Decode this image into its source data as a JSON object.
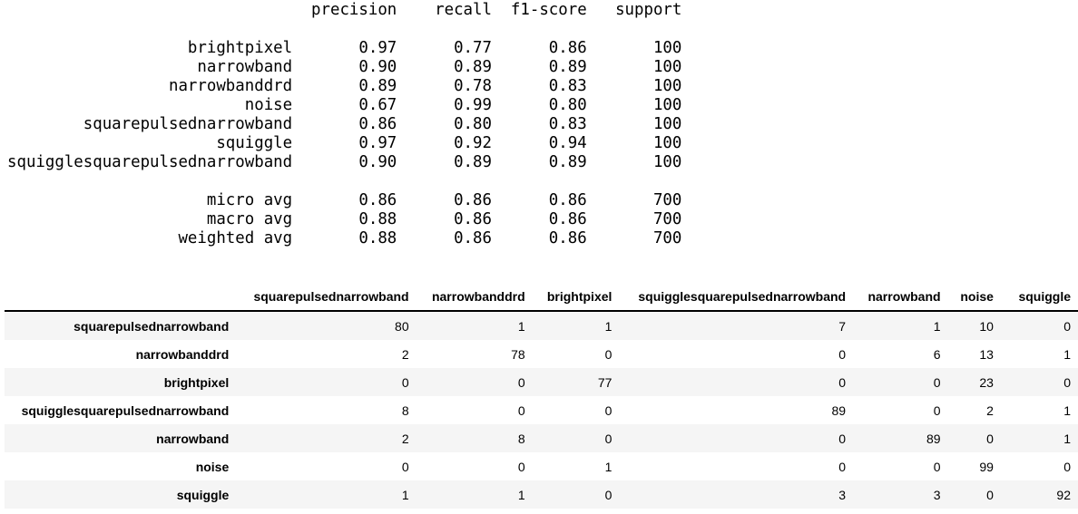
{
  "classification_report": {
    "headers": [
      "precision",
      "recall",
      "f1-score",
      "support"
    ],
    "label_field_width": 30,
    "value_field_width": 9,
    "rows": [
      {
        "label": "brightpixel",
        "precision": "0.97",
        "recall": "0.77",
        "f1_score": "0.86",
        "support": "100"
      },
      {
        "label": "narrowband",
        "precision": "0.90",
        "recall": "0.89",
        "f1_score": "0.89",
        "support": "100"
      },
      {
        "label": "narrowbanddrd",
        "precision": "0.89",
        "recall": "0.78",
        "f1_score": "0.83",
        "support": "100"
      },
      {
        "label": "noise",
        "precision": "0.67",
        "recall": "0.99",
        "f1_score": "0.80",
        "support": "100"
      },
      {
        "label": "squarepulsednarrowband",
        "precision": "0.86",
        "recall": "0.80",
        "f1_score": "0.83",
        "support": "100"
      },
      {
        "label": "squiggle",
        "precision": "0.97",
        "recall": "0.92",
        "f1_score": "0.94",
        "support": "100"
      },
      {
        "label": "squigglesquarepulsednarrowband",
        "precision": "0.90",
        "recall": "0.89",
        "f1_score": "0.89",
        "support": "100"
      }
    ],
    "summary_rows": [
      {
        "label": "micro avg",
        "precision": "0.86",
        "recall": "0.86",
        "f1_score": "0.86",
        "support": "700"
      },
      {
        "label": "macro avg",
        "precision": "0.88",
        "recall": "0.86",
        "f1_score": "0.86",
        "support": "700"
      },
      {
        "label": "weighted avg",
        "precision": "0.88",
        "recall": "0.86",
        "f1_score": "0.86",
        "support": "700"
      }
    ]
  },
  "confusion_matrix": {
    "corner_label": "",
    "columns": [
      "squarepulsednarrowband",
      "narrowbanddrd",
      "brightpixel",
      "squigglesquarepulsednarrowband",
      "narrowband",
      "noise",
      "squiggle"
    ],
    "rows": [
      {
        "label": "squarepulsednarrowband",
        "values": [
          80,
          1,
          1,
          7,
          1,
          10,
          0
        ]
      },
      {
        "label": "narrowbanddrd",
        "values": [
          2,
          78,
          0,
          0,
          6,
          13,
          1
        ]
      },
      {
        "label": "brightpixel",
        "values": [
          0,
          0,
          77,
          0,
          0,
          23,
          0
        ]
      },
      {
        "label": "squigglesquarepulsednarrowband",
        "values": [
          8,
          0,
          0,
          89,
          0,
          2,
          1
        ]
      },
      {
        "label": "narrowband",
        "values": [
          2,
          8,
          0,
          0,
          89,
          0,
          1
        ]
      },
      {
        "label": "noise",
        "values": [
          0,
          0,
          1,
          0,
          0,
          99,
          0
        ]
      },
      {
        "label": "squiggle",
        "values": [
          1,
          1,
          0,
          3,
          3,
          0,
          92
        ]
      }
    ],
    "stripe_color": "#f5f5f5",
    "header_rule_color": "#000000"
  }
}
